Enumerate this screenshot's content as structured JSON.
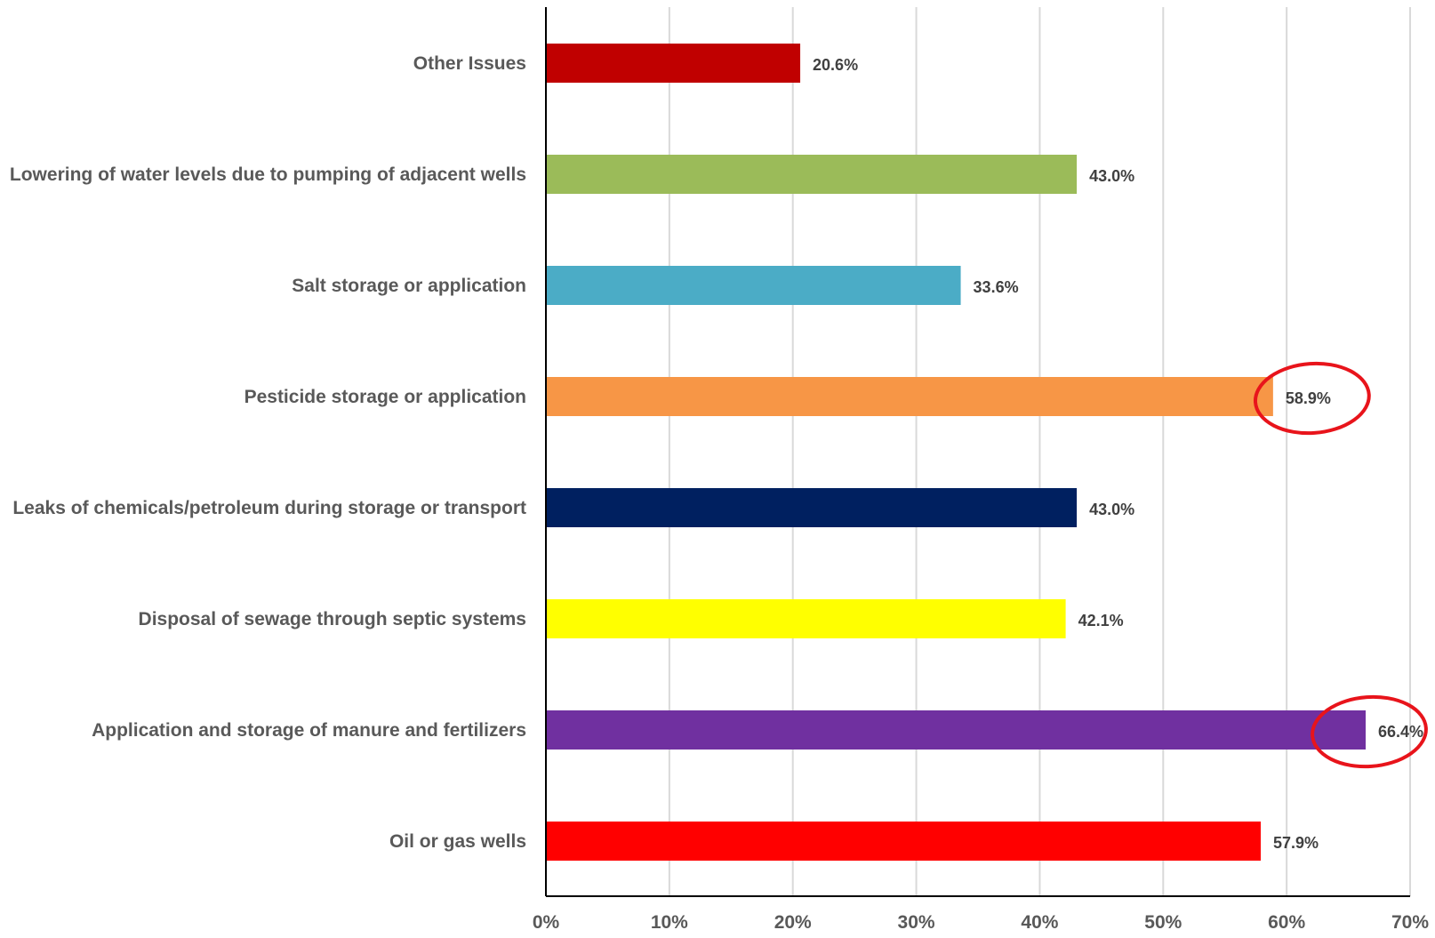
{
  "chart_data": {
    "type": "bar",
    "orientation": "horizontal",
    "title": "",
    "xlabel": "",
    "ylabel": "",
    "xlim": [
      0,
      70
    ],
    "x_ticks": [
      0,
      10,
      20,
      30,
      40,
      50,
      60,
      70
    ],
    "x_tick_labels": [
      "0%",
      "10%",
      "20%",
      "30%",
      "40%",
      "50%",
      "60%",
      "70%"
    ],
    "grid": "vertical",
    "legend": "none",
    "categories": [
      "Other Issues",
      "Lowering of water levels due to pumping of adjacent wells",
      "Salt storage or application",
      "Pesticide storage or application",
      "Leaks of chemicals/petroleum during storage or transport",
      "Disposal of sewage through septic systems",
      "Application and storage of manure and fertilizers",
      "Oil or gas wells"
    ],
    "values": [
      20.6,
      43.0,
      33.6,
      58.9,
      43.0,
      42.1,
      66.4,
      57.9
    ],
    "value_labels": [
      "20.6%",
      "43.0%",
      "33.6%",
      "58.9%",
      "43.0%",
      "42.1%",
      "66.4%",
      "57.9%"
    ],
    "colors": [
      "#C00000",
      "#9BBB59",
      "#4BACC6",
      "#F79646",
      "#002060",
      "#FFFF00",
      "#7030A0",
      "#FF0000"
    ],
    "highlight_circles": [
      "Pesticide storage or application",
      "Application and storage of manure and fertilizers"
    ],
    "highlight_color": "#E8141B"
  }
}
